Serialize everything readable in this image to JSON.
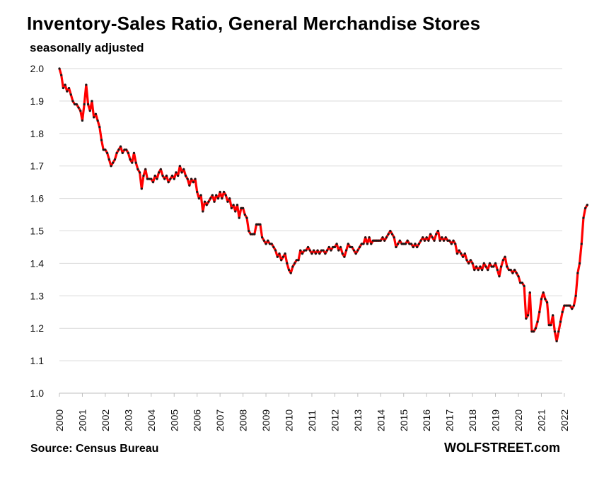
{
  "title": "Inventory-Sales Ratio, General Merchandise Stores",
  "subtitle": "seasonally adjusted",
  "source": "Source: Census Bureau",
  "brand": "WOLFSTREET.com",
  "colors": {
    "line": "#ff0000",
    "marker": "#1a1a1a",
    "grid": "#d9d9d9",
    "axis": "#bfbfbf"
  },
  "chart_data": {
    "type": "line",
    "title": "Inventory-Sales Ratio, General Merchandise Stores",
    "subtitle": "seasonally adjusted",
    "xlabel": "",
    "ylabel": "",
    "ylim": [
      1.0,
      2.0
    ],
    "yticks": [
      "1.0",
      "1.1",
      "1.2",
      "1.3",
      "1.4",
      "1.5",
      "1.6",
      "1.7",
      "1.8",
      "1.9",
      "2.0"
    ],
    "xticks": [
      "2000",
      "2001",
      "2002",
      "2003",
      "2004",
      "2005",
      "2006",
      "2007",
      "2008",
      "2009",
      "2010",
      "2011",
      "2012",
      "2013",
      "2014",
      "2015",
      "2016",
      "2017",
      "2018",
      "2019",
      "2020",
      "2021",
      "2022"
    ],
    "grid": true,
    "legend": "none",
    "frequency": "monthly",
    "series": [
      {
        "start": "2000-01",
        "values": [
          2.0,
          1.98,
          1.94,
          1.95,
          1.93,
          1.94,
          1.92,
          1.9,
          1.89,
          1.89,
          1.88,
          1.87,
          1.84,
          1.89,
          1.95,
          1.89,
          1.87,
          1.9,
          1.85,
          1.86,
          1.84,
          1.82,
          1.78,
          1.75,
          1.75,
          1.74,
          1.72,
          1.7,
          1.71,
          1.72,
          1.74,
          1.75,
          1.76,
          1.74,
          1.75,
          1.75,
          1.74,
          1.72,
          1.71,
          1.74,
          1.71,
          1.69,
          1.68,
          1.63,
          1.67,
          1.69,
          1.66,
          1.66,
          1.66,
          1.65,
          1.67,
          1.66,
          1.68,
          1.69,
          1.67,
          1.66,
          1.67,
          1.65,
          1.66,
          1.67,
          1.66,
          1.68,
          1.67,
          1.7,
          1.68,
          1.69,
          1.67,
          1.66,
          1.64,
          1.66,
          1.65,
          1.66,
          1.62,
          1.6,
          1.61,
          1.56,
          1.59,
          1.58,
          1.59,
          1.6,
          1.61,
          1.59,
          1.61,
          1.6,
          1.62,
          1.6,
          1.62,
          1.61,
          1.59,
          1.6,
          1.57,
          1.58,
          1.56,
          1.58,
          1.54,
          1.57,
          1.57,
          1.55,
          1.54,
          1.5,
          1.49,
          1.49,
          1.49,
          1.52,
          1.52,
          1.52,
          1.48,
          1.47,
          1.46,
          1.47,
          1.46,
          1.46,
          1.45,
          1.44,
          1.42,
          1.43,
          1.41,
          1.42,
          1.43,
          1.4,
          1.38,
          1.37,
          1.39,
          1.4,
          1.41,
          1.41,
          1.44,
          1.43,
          1.44,
          1.44,
          1.45,
          1.44,
          1.43,
          1.44,
          1.43,
          1.44,
          1.43,
          1.44,
          1.44,
          1.43,
          1.44,
          1.45,
          1.44,
          1.45,
          1.45,
          1.46,
          1.44,
          1.45,
          1.43,
          1.42,
          1.44,
          1.46,
          1.45,
          1.45,
          1.44,
          1.43,
          1.44,
          1.45,
          1.46,
          1.46,
          1.48,
          1.46,
          1.48,
          1.46,
          1.47,
          1.47,
          1.47,
          1.47,
          1.47,
          1.48,
          1.47,
          1.48,
          1.49,
          1.5,
          1.49,
          1.48,
          1.45,
          1.46,
          1.47,
          1.46,
          1.46,
          1.46,
          1.47,
          1.46,
          1.46,
          1.45,
          1.46,
          1.45,
          1.46,
          1.47,
          1.48,
          1.47,
          1.48,
          1.47,
          1.49,
          1.48,
          1.47,
          1.49,
          1.5,
          1.47,
          1.48,
          1.47,
          1.48,
          1.47,
          1.47,
          1.46,
          1.47,
          1.46,
          1.43,
          1.44,
          1.43,
          1.42,
          1.43,
          1.41,
          1.4,
          1.41,
          1.4,
          1.38,
          1.39,
          1.38,
          1.39,
          1.38,
          1.4,
          1.39,
          1.38,
          1.4,
          1.39,
          1.39,
          1.4,
          1.38,
          1.36,
          1.39,
          1.41,
          1.42,
          1.39,
          1.38,
          1.38,
          1.37,
          1.38,
          1.37,
          1.36,
          1.34,
          1.34,
          1.33,
          1.23,
          1.24,
          1.31,
          1.19,
          1.19,
          1.2,
          1.22,
          1.25,
          1.29,
          1.31,
          1.29,
          1.28,
          1.21,
          1.21,
          1.24,
          1.19,
          1.16,
          1.19,
          1.22,
          1.25,
          1.27,
          1.27,
          1.27,
          1.27,
          1.26,
          1.27,
          1.3,
          1.37,
          1.4,
          1.46,
          1.54,
          1.57,
          1.58
        ]
      }
    ]
  }
}
